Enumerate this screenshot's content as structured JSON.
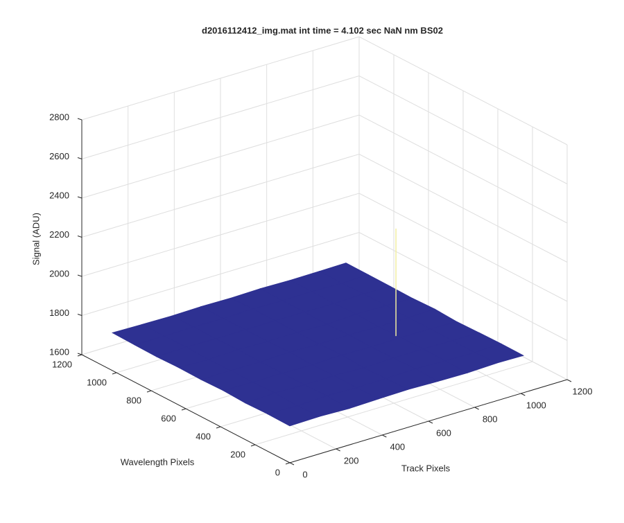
{
  "chart_data": {
    "type": "surface",
    "title": "d2016112412_img.mat int time = 4.102 sec  NaN nm BS02",
    "xlabel": "Track Pixels",
    "ylabel": "Wavelength Pixels",
    "zlabel": "Signal (ADU)",
    "xlim": [
      0,
      1200
    ],
    "xticks": [
      0,
      200,
      400,
      600,
      800,
      1000,
      1200
    ],
    "ylim": [
      0,
      1200
    ],
    "yticks": [
      0,
      200,
      400,
      600,
      800,
      1000,
      1200
    ],
    "zlim": [
      1600,
      2800
    ],
    "zticks": [
      1600,
      1800,
      2000,
      2200,
      2400,
      2600,
      2800
    ],
    "grid": true,
    "color": "#2e3192",
    "x": [
      0,
      128,
      256,
      384,
      512,
      640,
      768,
      896,
      1011
    ],
    "y": [
      0,
      128,
      256,
      384,
      512,
      640,
      768,
      896,
      1024
    ],
    "z": [
      [
        1788,
        1791,
        1786,
        1790,
        1793,
        1789,
        1787,
        1792,
        1790
      ],
      [
        1790,
        1786,
        1792,
        1788,
        1790,
        1794,
        1789,
        1787,
        1791
      ],
      [
        1787,
        1793,
        1789,
        1791,
        1786,
        1790,
        1792,
        1788,
        1789
      ],
      [
        1792,
        1789,
        1790,
        1787,
        1792,
        1788,
        1791,
        1790,
        1786
      ],
      [
        1789,
        1790,
        1788,
        1793,
        1789,
        1791,
        1787,
        1789,
        1792
      ],
      [
        1791,
        1787,
        1792,
        1789,
        1790,
        1786,
        1793,
        1791,
        1788
      ],
      [
        1788,
        1792,
        1789,
        1790,
        1791,
        1790,
        1788,
        1792,
        1790
      ],
      [
        1790,
        1789,
        1791,
        1788,
        1792,
        1789,
        1790,
        1787,
        1791
      ],
      [
        1793,
        1790,
        1788,
        1791,
        1789,
        1792,
        1789,
        1790,
        1792
      ]
    ],
    "peak": {
      "x": 763,
      "y": 405,
      "z": 2340,
      "color": "#f2eea0"
    }
  }
}
